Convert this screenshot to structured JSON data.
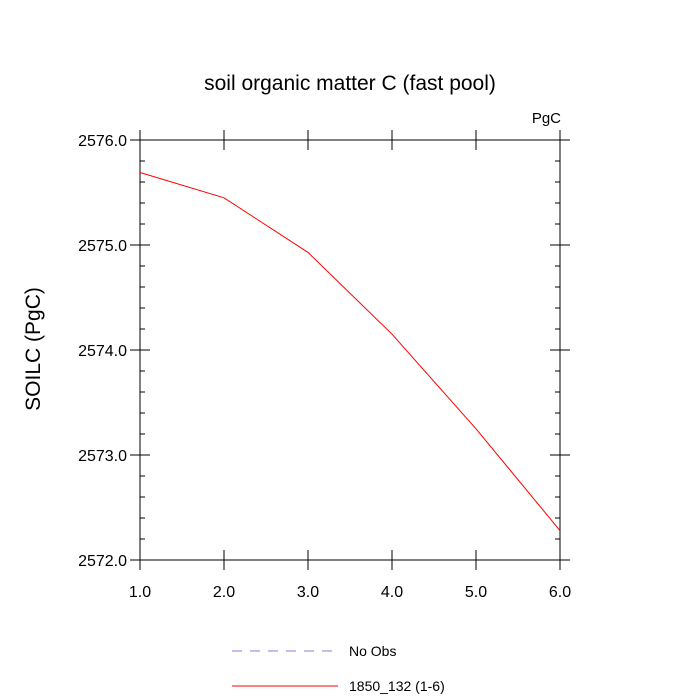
{
  "chart_data": {
    "type": "line",
    "title": "soil organic matter C (fast pool)",
    "units": "PgC",
    "ylabel": "SOILC  (PgC)",
    "xlabel": "",
    "xlim": [
      1.0,
      6.0
    ],
    "ylim": [
      2572.0,
      2576.0
    ],
    "xticks": [
      "1.0",
      "2.0",
      "3.0",
      "4.0",
      "5.0",
      "6.0"
    ],
    "yticks": [
      "2572.0",
      "2573.0",
      "2574.0",
      "2575.0",
      "2576.0"
    ],
    "series": [
      {
        "name": "No Obs",
        "color": "#8080e0",
        "style": "dashed",
        "x": [],
        "y": []
      },
      {
        "name": "1850_132 (1-6)",
        "color": "#ff0000",
        "style": "solid",
        "x": [
          1.0,
          2.0,
          3.0,
          4.0,
          5.0,
          6.0
        ],
        "y": [
          2575.69,
          2575.45,
          2574.93,
          2574.15,
          2573.25,
          2572.28
        ]
      }
    ],
    "legend": [
      "No Obs",
      "1850_132 (1-6)"
    ],
    "legend_position": "bottom-center"
  }
}
